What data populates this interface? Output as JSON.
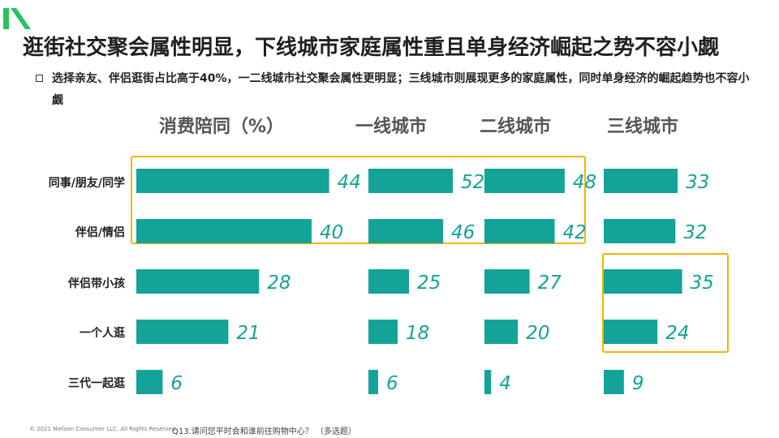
{
  "colors": {
    "bar": "#14a398",
    "value_text": "#14a398",
    "highlight": "#f4b400",
    "logo": "#22c55e"
  },
  "title": "逛街社交聚会属性明显，下线城市家庭属性重且单身经济崛起之势不容小觑",
  "subtitle": "选择亲友、伴侣逛街占比高于40%，一二线城市社交聚会属性更明显；三线城市则展现更多的家庭属性，同时单身经济的崛起趋势也不容小觑",
  "footer": {
    "copyright": "© 2021 Nielsen Consumer LLC. All Rights Reserved.",
    "question": "Q13.请问您平时会和谁前往购物中心？ （多选题）"
  },
  "chart_data": {
    "type": "bar",
    "title": "消费陪同（%）",
    "orientation": "horizontal",
    "categories": [
      "同事/朋友/同学",
      "伴侣/情侣",
      "伴侣带小孩",
      "一个人逛",
      "三代一起逛"
    ],
    "series": [
      {
        "name": "消费陪同（%）",
        "values": [
          44,
          40,
          28,
          21,
          6
        ]
      },
      {
        "name": "一线城市",
        "values": [
          52,
          46,
          25,
          18,
          6
        ]
      },
      {
        "name": "二线城市",
        "values": [
          48,
          42,
          27,
          20,
          4
        ]
      },
      {
        "name": "三线城市",
        "values": [
          33,
          32,
          35,
          24,
          9
        ]
      }
    ],
    "highlights": [
      {
        "series": [
          0,
          1,
          2
        ],
        "categories": [
          0,
          1
        ]
      },
      {
        "series": [
          3
        ],
        "categories": [
          2,
          3
        ]
      }
    ]
  }
}
